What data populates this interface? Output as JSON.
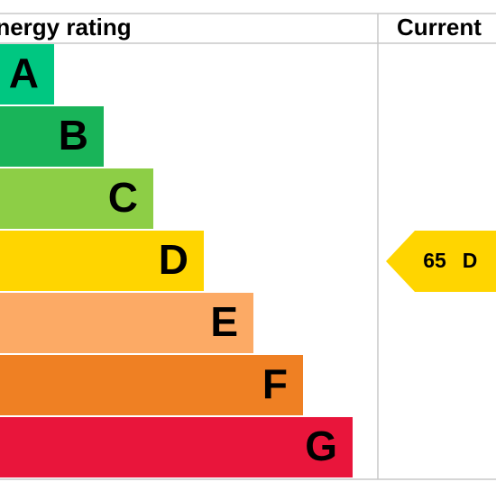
{
  "header": {
    "title": "Energy rating",
    "current": "Current"
  },
  "bands": [
    {
      "letter": "A"
    },
    {
      "letter": "B"
    },
    {
      "letter": "C"
    },
    {
      "letter": "D"
    },
    {
      "letter": "E"
    },
    {
      "letter": "F"
    },
    {
      "letter": "G"
    }
  ],
  "current": {
    "score": 65,
    "band": "D"
  }
}
